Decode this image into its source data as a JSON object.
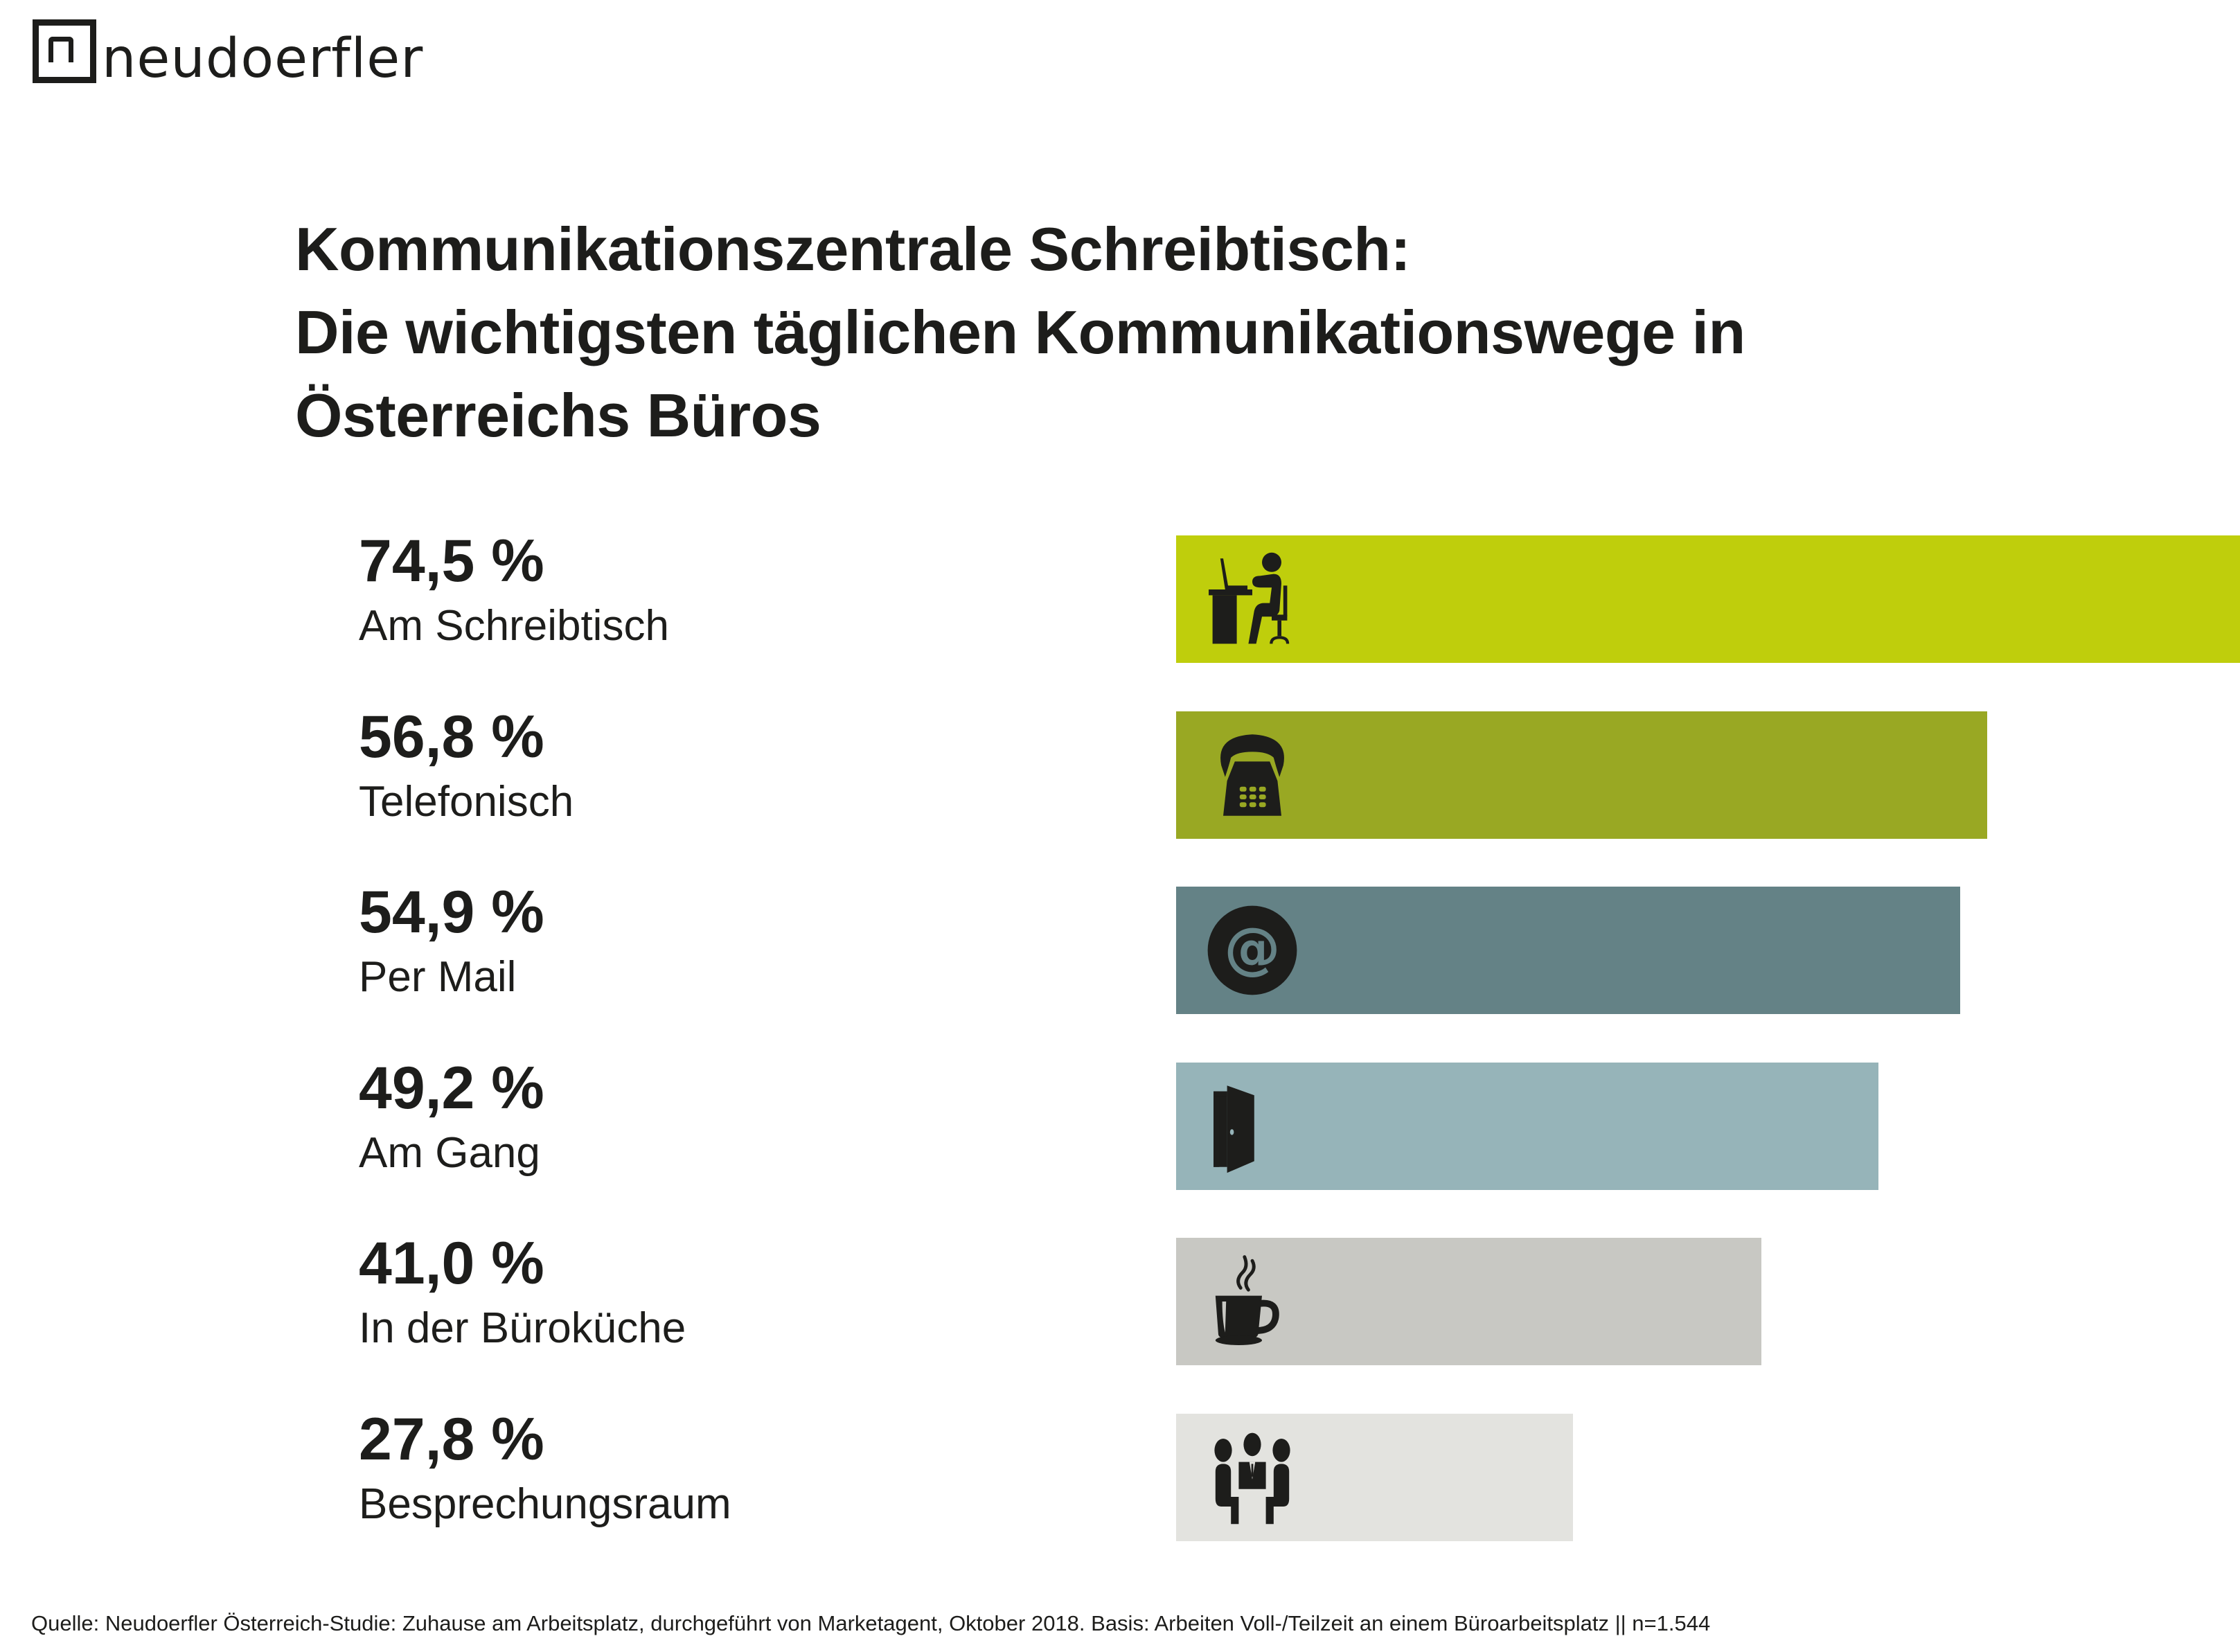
{
  "brand": {
    "name": "neudoerfler"
  },
  "title": {
    "lines": [
      "Kommunikationszentrale Schreibtisch:",
      "Die wichtigsten täglichen Kommunikationswege in",
      "Österreichs Büros"
    ]
  },
  "chart_data": {
    "type": "bar",
    "orientation": "horizontal",
    "title": "Kommunikationszentrale Schreibtisch: Die wichtigsten täglichen Kommunikationswege in Österreichs Büros",
    "xlabel": "",
    "ylabel": "",
    "unit": "%",
    "xlim": [
      0,
      74.5
    ],
    "grid": false,
    "legend": "none",
    "categories": [
      "Am Schreibtisch",
      "Telefonisch",
      "Per Mail",
      "Am Gang",
      "In der Büroküche",
      "Besprechungsraum"
    ],
    "values": [
      74.5,
      56.8,
      54.9,
      49.2,
      41.0,
      27.8
    ],
    "value_labels": [
      "74,5 %",
      "56,8 %",
      "54,9 %",
      "49,2 %",
      "41,0 %",
      "27,8 %"
    ],
    "icons": [
      "desk-worker-icon",
      "telephone-icon",
      "at-sign-icon",
      "door-icon",
      "coffee-cup-icon",
      "meeting-icon"
    ],
    "colors": [
      "#bfce0c",
      "#99a823",
      "#648286",
      "#96b4b9",
      "#c8c8c3",
      "#e3e3df"
    ]
  },
  "footer": {
    "source": "Quelle: Neudoerfler Österreich-Studie: Zuhause am Arbeitsplatz, durchgeführt von Marketagent, Oktober 2018. Basis: Arbeiten Voll-/Teilzeit an einem Büroarbeitsplatz || n=1.544"
  }
}
